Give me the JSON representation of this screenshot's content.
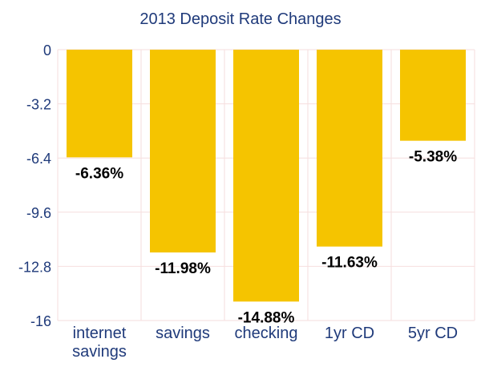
{
  "chart_data": {
    "type": "bar",
    "title": "2013 Deposit Rate Changes",
    "categories": [
      [
        "internet",
        "savings"
      ],
      [
        "savings"
      ],
      [
        "checking"
      ],
      [
        "1yr CD"
      ],
      [
        "5yr CD"
      ]
    ],
    "values": [
      -6.36,
      -11.98,
      -14.88,
      -11.63,
      -5.38
    ],
    "data_labels": [
      "-6.36%",
      "-11.98%",
      "-14.88%",
      "-11.63%",
      "-5.38%"
    ],
    "yticks": [
      "0",
      "-3.2",
      "-6.4",
      "-9.6",
      "-12.8",
      "-16"
    ],
    "ylim": [
      -16,
      0
    ],
    "xlabel": "",
    "ylabel": "",
    "grid": true,
    "colors": {
      "bar": "#f5c400",
      "text": "#1f3a7a",
      "grid": "#f6dede"
    }
  }
}
